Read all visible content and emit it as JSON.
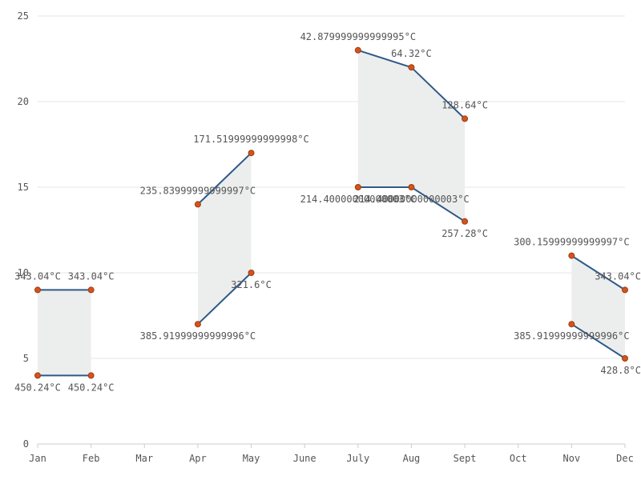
{
  "chart_data": {
    "type": "area",
    "categories": [
      "Jan",
      "Feb",
      "Mar",
      "Apr",
      "May",
      "June",
      "July",
      "Aug",
      "Sept",
      "Oct",
      "Nov",
      "Dec"
    ],
    "ylim": [
      0,
      25
    ],
    "yticks": [
      0,
      5,
      10,
      15,
      20,
      25
    ],
    "grid": true,
    "colors": {
      "line": "#2e5a87",
      "fill": "#eceded",
      "point": "#d4541c",
      "point_stroke": "#a03a10",
      "grid": "#e6e6e6",
      "axis": "#cccccc"
    },
    "ranges": [
      {
        "x": [
          "Jan",
          "Feb"
        ],
        "upper": [
          9,
          9
        ],
        "lower": [
          4,
          4
        ],
        "upper_labels": [
          "343.04°C",
          "343.04°C"
        ],
        "lower_labels": [
          "450.24°C",
          "450.24°C"
        ]
      },
      {
        "x": [
          "Apr",
          "May"
        ],
        "upper": [
          14,
          17
        ],
        "lower": [
          7,
          10
        ],
        "upper_labels": [
          "235.83999999999997°C",
          "171.51999999999998°C"
        ],
        "lower_labels": [
          "385.91999999999996°C",
          "321.6°C"
        ]
      },
      {
        "x": [
          "July",
          "Aug",
          "Sept"
        ],
        "upper": [
          23,
          22,
          19
        ],
        "lower": [
          15,
          15,
          13
        ],
        "upper_labels": [
          "42.879999999999995°C",
          "64.32°C",
          "128.64°C"
        ],
        "lower_labels": [
          "214.40000000000003°C",
          "214.40000000000003°C",
          "257.28°C"
        ]
      },
      {
        "x": [
          "Nov",
          "Dec"
        ],
        "upper": [
          11,
          9
        ],
        "lower": [
          7,
          5
        ],
        "upper_labels": [
          "300.15999999999997°C",
          "343.04°C"
        ],
        "lower_labels": [
          "385.91999999999996°C",
          "428.8°C"
        ]
      }
    ]
  }
}
